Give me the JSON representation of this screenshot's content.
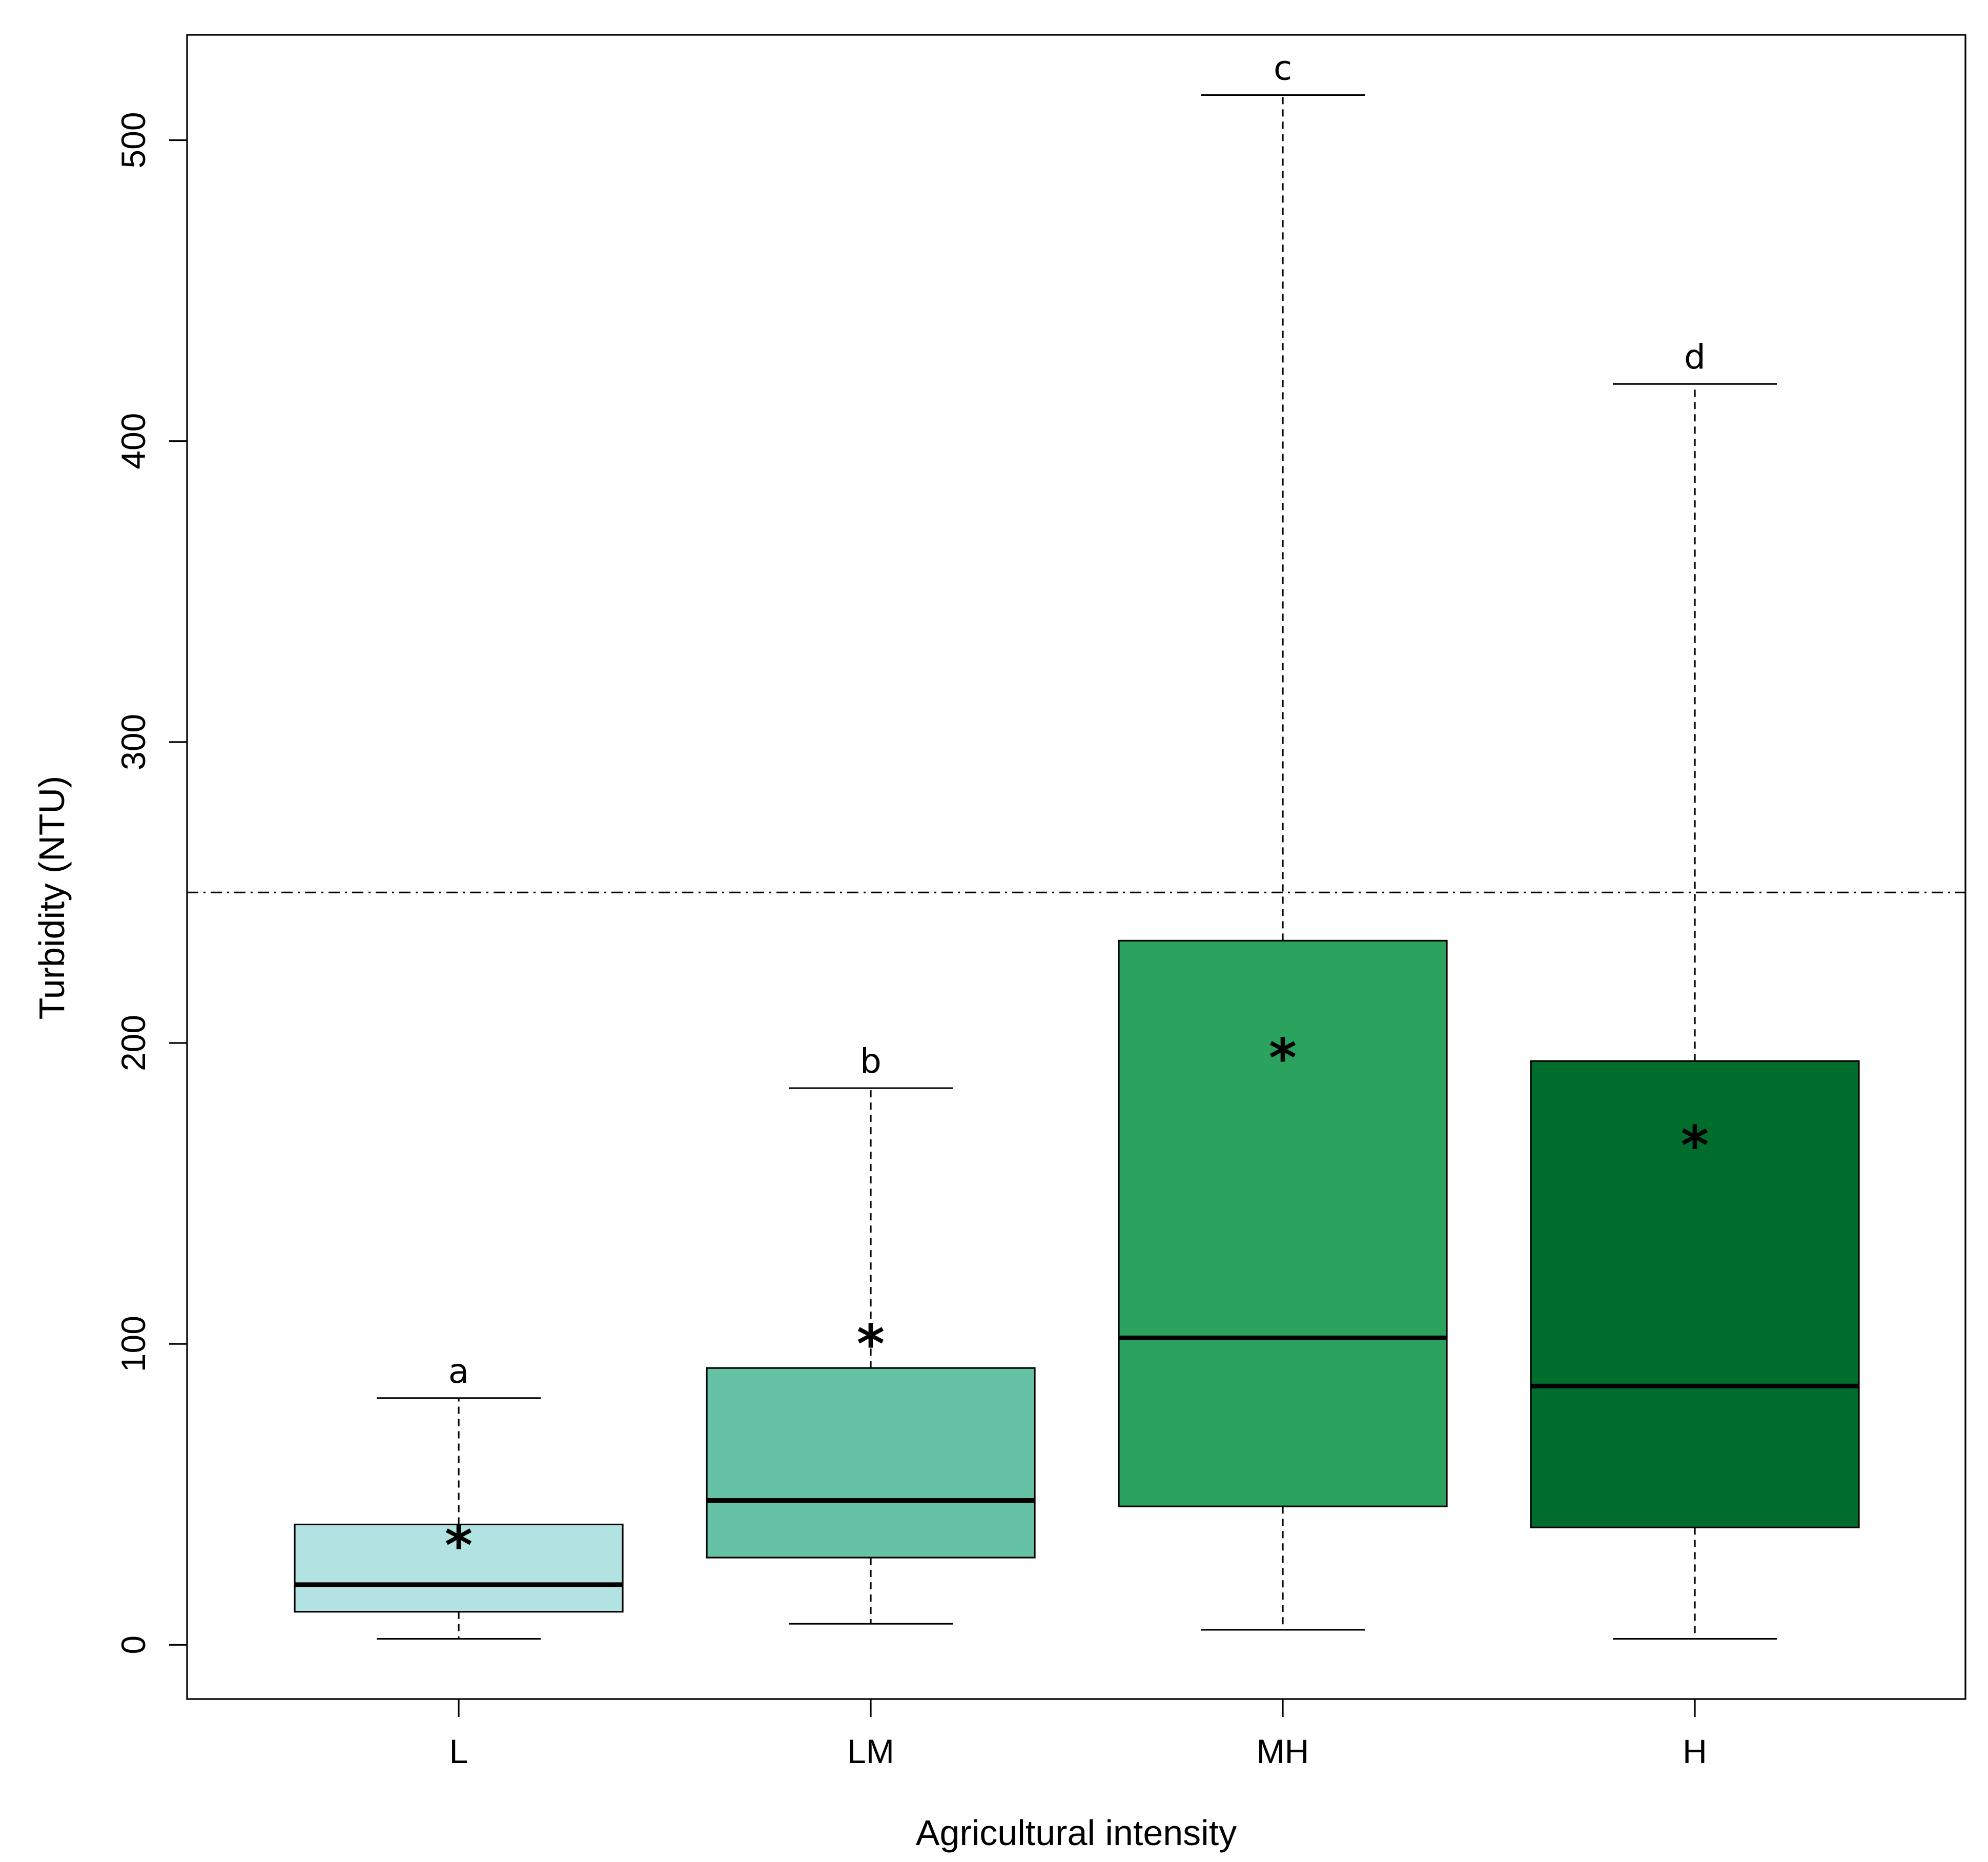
{
  "chart_data": {
    "type": "boxplot",
    "title": "",
    "xlabel": "Agricultural intensity",
    "ylabel": "Turbidity (NTU)",
    "categories": [
      "L",
      "LM",
      "MH",
      "H"
    ],
    "yticks": [
      0,
      100,
      200,
      300,
      400,
      500
    ],
    "ylim": [
      -18,
      535
    ],
    "reference_line": 250,
    "fill_colors": [
      "#b2e2e2",
      "#66c2a4",
      "#2ca25f",
      "#006d2c"
    ],
    "boxes": [
      {
        "category": "L",
        "min": 2,
        "q1": 11,
        "median": 20,
        "q3": 40,
        "max": 82,
        "mean": 34,
        "group_label": "a"
      },
      {
        "category": "LM",
        "min": 7,
        "q1": 29,
        "median": 48,
        "q3": 92,
        "max": 185,
        "mean": 101,
        "group_label": "b"
      },
      {
        "category": "MH",
        "min": 5,
        "q1": 46,
        "median": 102,
        "q3": 234,
        "max": 515,
        "mean": 196,
        "group_label": "c"
      },
      {
        "category": "H",
        "min": 2,
        "q1": 39,
        "median": 86,
        "q3": 194,
        "max": 419,
        "mean": 167,
        "group_label": "d"
      }
    ],
    "mean_marker": "*"
  }
}
